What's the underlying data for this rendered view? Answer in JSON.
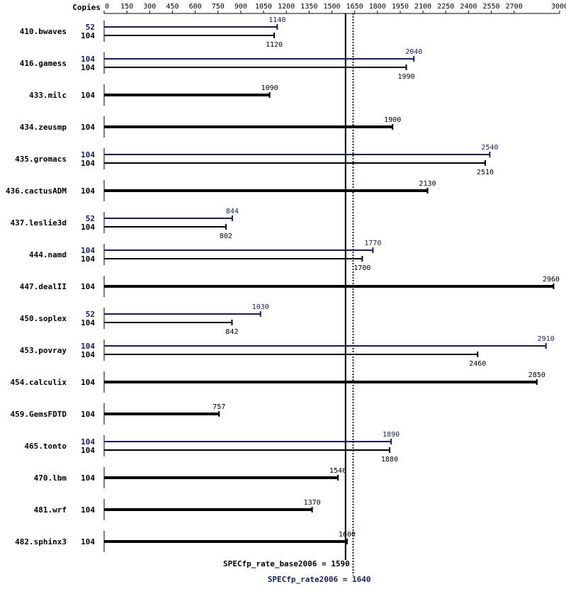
{
  "colors": {
    "base": "#000000",
    "peak": "#191970",
    "background": "#ffffff"
  },
  "chart_data": {
    "type": "bar",
    "orientation": "horizontal",
    "axis_title": "Copies",
    "ticks": [
      0,
      150,
      300,
      450,
      600,
      750,
      900,
      1050,
      1200,
      1350,
      1500,
      1650,
      1800,
      1950,
      2100,
      2250,
      2400,
      2550,
      2700,
      3000
    ],
    "xlim": [
      0,
      3000
    ],
    "grid": false,
    "benchmarks": [
      {
        "name": "410.bwaves",
        "peak": {
          "copies": "52",
          "value": 1140,
          "label": "1140"
        },
        "base": {
          "copies": "104",
          "value": 1120,
          "label": "1120"
        }
      },
      {
        "name": "416.gamess",
        "peak": {
          "copies": "104",
          "value": 2040,
          "label": "2040"
        },
        "base": {
          "copies": "104",
          "value": 1990,
          "label": "1990"
        }
      },
      {
        "name": "433.milc",
        "base": {
          "copies": "104",
          "value": 1090,
          "label": "1090"
        }
      },
      {
        "name": "434.zeusmp",
        "base": {
          "copies": "104",
          "value": 1900,
          "label": "1900"
        }
      },
      {
        "name": "435.gromacs",
        "peak": {
          "copies": "104",
          "value": 2540,
          "label": "2540"
        },
        "base": {
          "copies": "104",
          "value": 2510,
          "label": "2510"
        }
      },
      {
        "name": "436.cactusADM",
        "base": {
          "copies": "104",
          "value": 2130,
          "label": "2130"
        }
      },
      {
        "name": "437.leslie3d",
        "peak": {
          "copies": "52",
          "value": 844,
          "label": "844"
        },
        "base": {
          "copies": "104",
          "value": 802,
          "label": "802"
        }
      },
      {
        "name": "444.namd",
        "peak": {
          "copies": "104",
          "value": 1770,
          "label": "1770"
        },
        "base": {
          "copies": "104",
          "value": 1700,
          "label": "1700"
        }
      },
      {
        "name": "447.dealII",
        "base": {
          "copies": "104",
          "value": 2960,
          "label": "2960"
        }
      },
      {
        "name": "450.soplex",
        "peak": {
          "copies": "52",
          "value": 1030,
          "label": "1030"
        },
        "base": {
          "copies": "104",
          "value": 842,
          "label": "842"
        }
      },
      {
        "name": "453.povray",
        "peak": {
          "copies": "104",
          "value": 2910,
          "label": "2910"
        },
        "base": {
          "copies": "104",
          "value": 2460,
          "label": "2460"
        }
      },
      {
        "name": "454.calculix",
        "base": {
          "copies": "104",
          "value": 2850,
          "label": "2850"
        }
      },
      {
        "name": "459.GemsFDTD",
        "base": {
          "copies": "104",
          "value": 757,
          "label": "757"
        }
      },
      {
        "name": "465.tonto",
        "peak": {
          "copies": "104",
          "value": 1890,
          "label": "1890"
        },
        "base": {
          "copies": "104",
          "value": 1880,
          "label": "1880"
        }
      },
      {
        "name": "470.lbm",
        "base": {
          "copies": "104",
          "value": 1540,
          "label": "1540"
        }
      },
      {
        "name": "481.wrf",
        "base": {
          "copies": "104",
          "value": 1370,
          "label": "1370"
        }
      },
      {
        "name": "482.sphinx3",
        "base": {
          "copies": "104",
          "value": 1600,
          "label": "1600"
        }
      }
    ],
    "reference_lines": [
      {
        "name": "SPECfp_rate_base2006",
        "label": "SPECfp_rate_base2006 = 1590",
        "value": 1590,
        "style": "solid",
        "color": "#000000"
      },
      {
        "name": "SPECfp_rate2006",
        "label": "SPECfp_rate2006 = 1640",
        "value": 1640,
        "style": "dotted",
        "color": "#191970"
      }
    ]
  }
}
